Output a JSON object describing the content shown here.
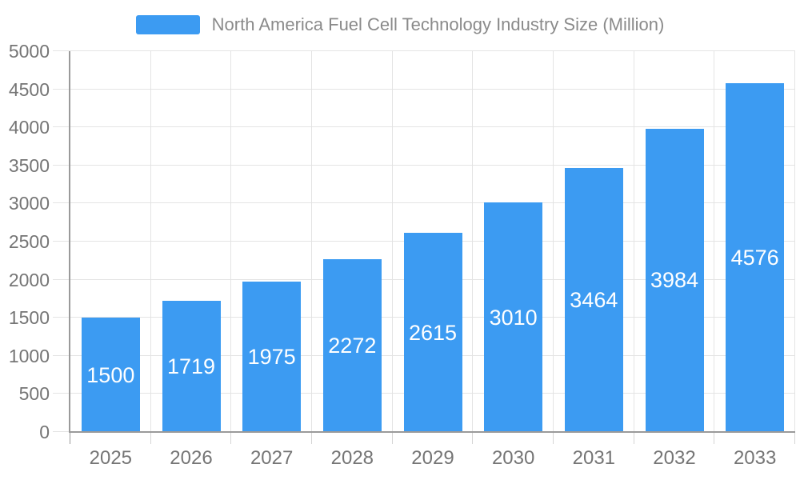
{
  "chart_data": {
    "type": "bar",
    "title": "North America Fuel Cell Technology Industry Size (Million)",
    "legend_position": "top",
    "categories": [
      "2025",
      "2026",
      "2027",
      "2028",
      "2029",
      "2030",
      "2031",
      "2032",
      "2033"
    ],
    "values": [
      1500,
      1719,
      1975,
      2272,
      2615,
      3010,
      3464,
      3984,
      4576
    ],
    "xlabel": "",
    "ylabel": "",
    "ylim": [
      0,
      5000
    ],
    "ytick_interval": 500,
    "yticks": [
      0,
      500,
      1000,
      1500,
      2000,
      2500,
      3000,
      3500,
      4000,
      4500,
      5000
    ],
    "grid": true,
    "value_labels": "inside-center",
    "colors": {
      "bar": "#3C9BF2",
      "value_label": "#FFFFFF",
      "axis_line": "#9A9A9A",
      "gridline": "#E3E3E3",
      "tick": "#D5D5D5",
      "axis_label": "#757575",
      "legend_text": "#8A8A8A",
      "background": "#FFFFFF"
    }
  }
}
